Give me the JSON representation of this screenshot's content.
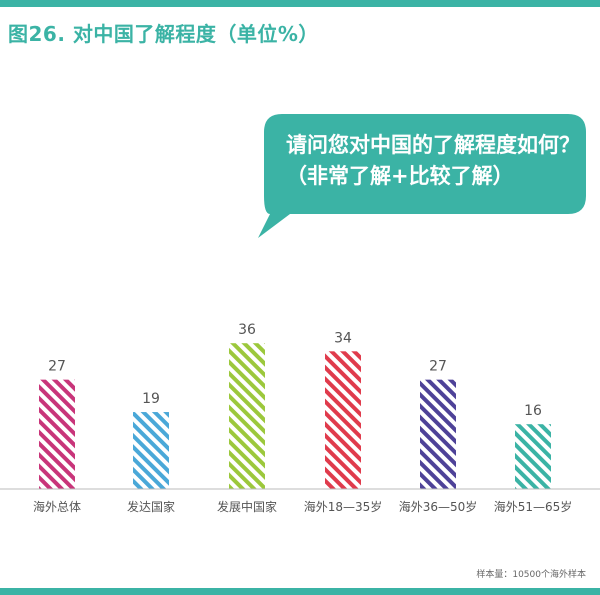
{
  "title": "图26. 对中国了解程度（单位%）",
  "callout": "请问您对中国的了解程度如何？（非常了解+比较了解）",
  "footnote": "样本量：10500个海外样本",
  "colors": {
    "accent": "#3bb3a5",
    "bars": [
      "#c8357a",
      "#4aa8d8",
      "#9cc83c",
      "#e03b4c",
      "#4e4298",
      "#3bb3a5"
    ]
  },
  "chart_data": {
    "type": "bar",
    "title": "图26. 对中国了解程度（单位%）",
    "categories": [
      "海外总体",
      "发达国家",
      "发展中国家",
      "海外18—35岁",
      "海外36—50岁",
      "海外51—65岁"
    ],
    "values": [
      27,
      19,
      36,
      34,
      27,
      16
    ],
    "unit": "%",
    "ylim": [
      0,
      40
    ],
    "grid": false,
    "legend": "none"
  }
}
